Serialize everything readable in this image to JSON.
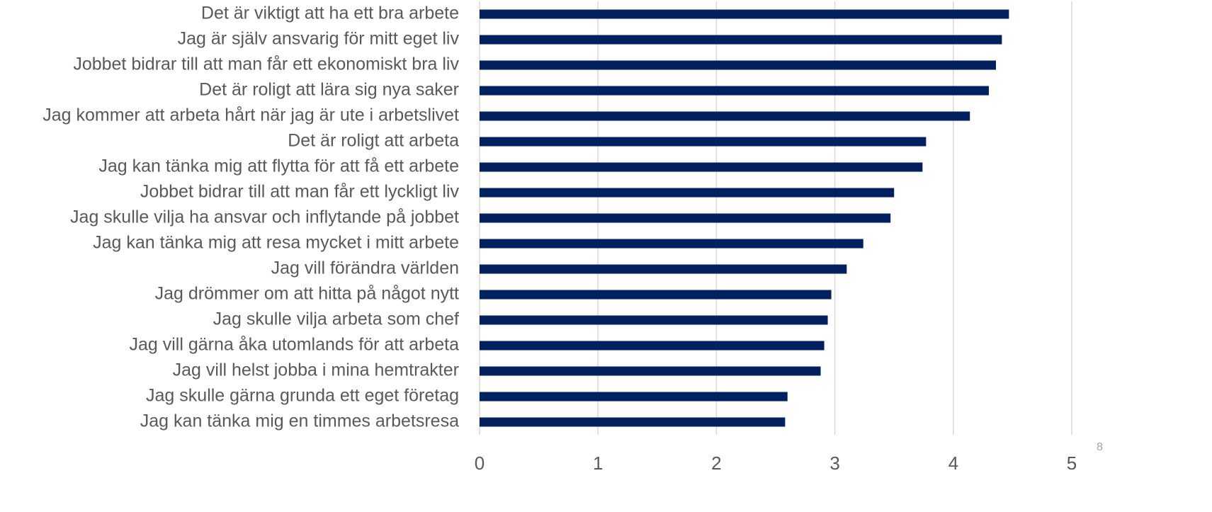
{
  "chart_data": {
    "type": "barh",
    "categories": [
      "Det är viktigt att ha ett bra arbete",
      "Jag är själv ansvarig för mitt eget liv",
      "Jobbet bidrar till att man får ett ekonomiskt bra liv",
      "Det är roligt att lära sig nya saker",
      "Jag kommer att arbeta hårt när jag är ute i arbetslivet",
      "Det är roligt att arbeta",
      "Jag kan tänka mig att flytta för att få ett arbete",
      "Jobbet bidrar till att man får ett lyckligt liv",
      "Jag skulle vilja ha ansvar och inflytande på jobbet",
      "Jag kan tänka mig att resa mycket i mitt arbete",
      "Jag vill förändra världen",
      "Jag drömmer om att hitta på något nytt",
      "Jag skulle vilja arbeta som chef",
      "Jag vill gärna åka utomlands för att arbeta",
      "Jag vill helst jobba i mina hemtrakter",
      "Jag skulle gärna grunda ett eget företag",
      "Jag kan tänka mig en timmes arbetsresa"
    ],
    "values": [
      4.47,
      4.41,
      4.36,
      4.3,
      4.14,
      3.77,
      3.74,
      3.5,
      3.47,
      3.24,
      3.1,
      2.97,
      2.94,
      2.91,
      2.88,
      2.6,
      2.58
    ],
    "color": "#002060",
    "xlim": [
      0,
      5
    ],
    "xticks": [
      0,
      1,
      2,
      3,
      4,
      5
    ],
    "grid": true
  },
  "page_number": "8"
}
